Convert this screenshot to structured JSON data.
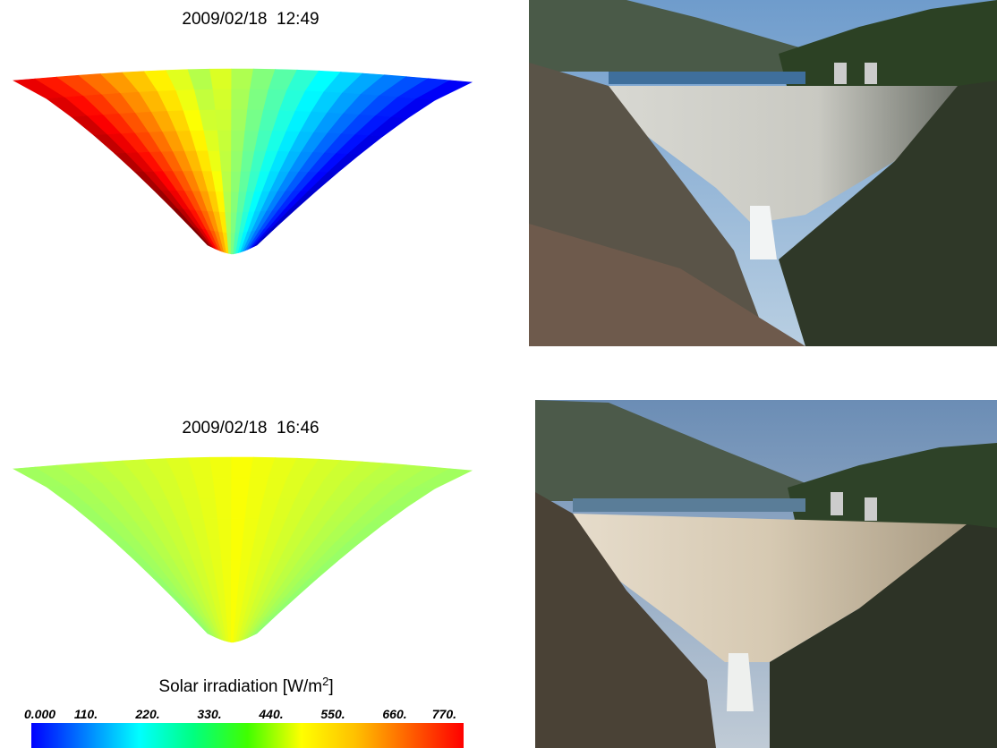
{
  "panels": [
    {
      "timestamp": "2009/02/18  12:49"
    },
    {
      "timestamp": "2009/02/18  16:46"
    }
  ],
  "colorbar": {
    "title": "Solar irradiation [W/m",
    "title_sup": "2",
    "title_end": "]",
    "tick_labels": [
      "0.000",
      "110.",
      "220.",
      "330.",
      "440.",
      "550.",
      "660.",
      "770."
    ]
  }
}
